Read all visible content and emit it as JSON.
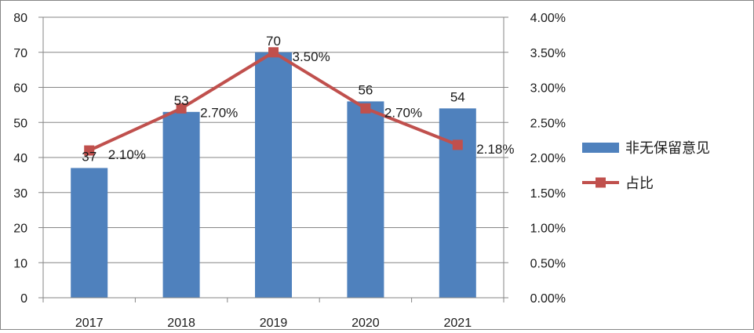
{
  "chart_data": {
    "type": "bar",
    "categories": [
      "2017",
      "2018",
      "2019",
      "2020",
      "2021"
    ],
    "series": [
      {
        "name": "非无保留意见",
        "type": "bar",
        "axis": "left",
        "values": [
          37,
          53,
          70,
          56,
          54
        ],
        "labels": [
          "37",
          "53",
          "70",
          "56",
          "54"
        ],
        "color": "#4f81bd"
      },
      {
        "name": "占比",
        "type": "line",
        "axis": "right",
        "values": [
          2.1,
          2.7,
          3.5,
          2.7,
          2.18
        ],
        "labels": [
          "2.10%",
          "2.70%",
          "3.50%",
          "2.70%",
          "2.18%"
        ],
        "color": "#c0504d"
      }
    ],
    "y_left": {
      "min": 0,
      "max": 80,
      "ticks": [
        "0",
        "10",
        "20",
        "30",
        "40",
        "50",
        "60",
        "70",
        "80"
      ]
    },
    "y_right": {
      "min": 0,
      "max": 4,
      "ticks": [
        "0.00%",
        "0.50%",
        "1.00%",
        "1.50%",
        "2.00%",
        "2.50%",
        "3.00%",
        "3.50%",
        "4.00%"
      ]
    },
    "grid": "horizontal",
    "legend": "right"
  },
  "colors": {
    "axis": "#868686",
    "grid": "#868686",
    "bar": "#4f81bd",
    "line": "#c0504d"
  }
}
